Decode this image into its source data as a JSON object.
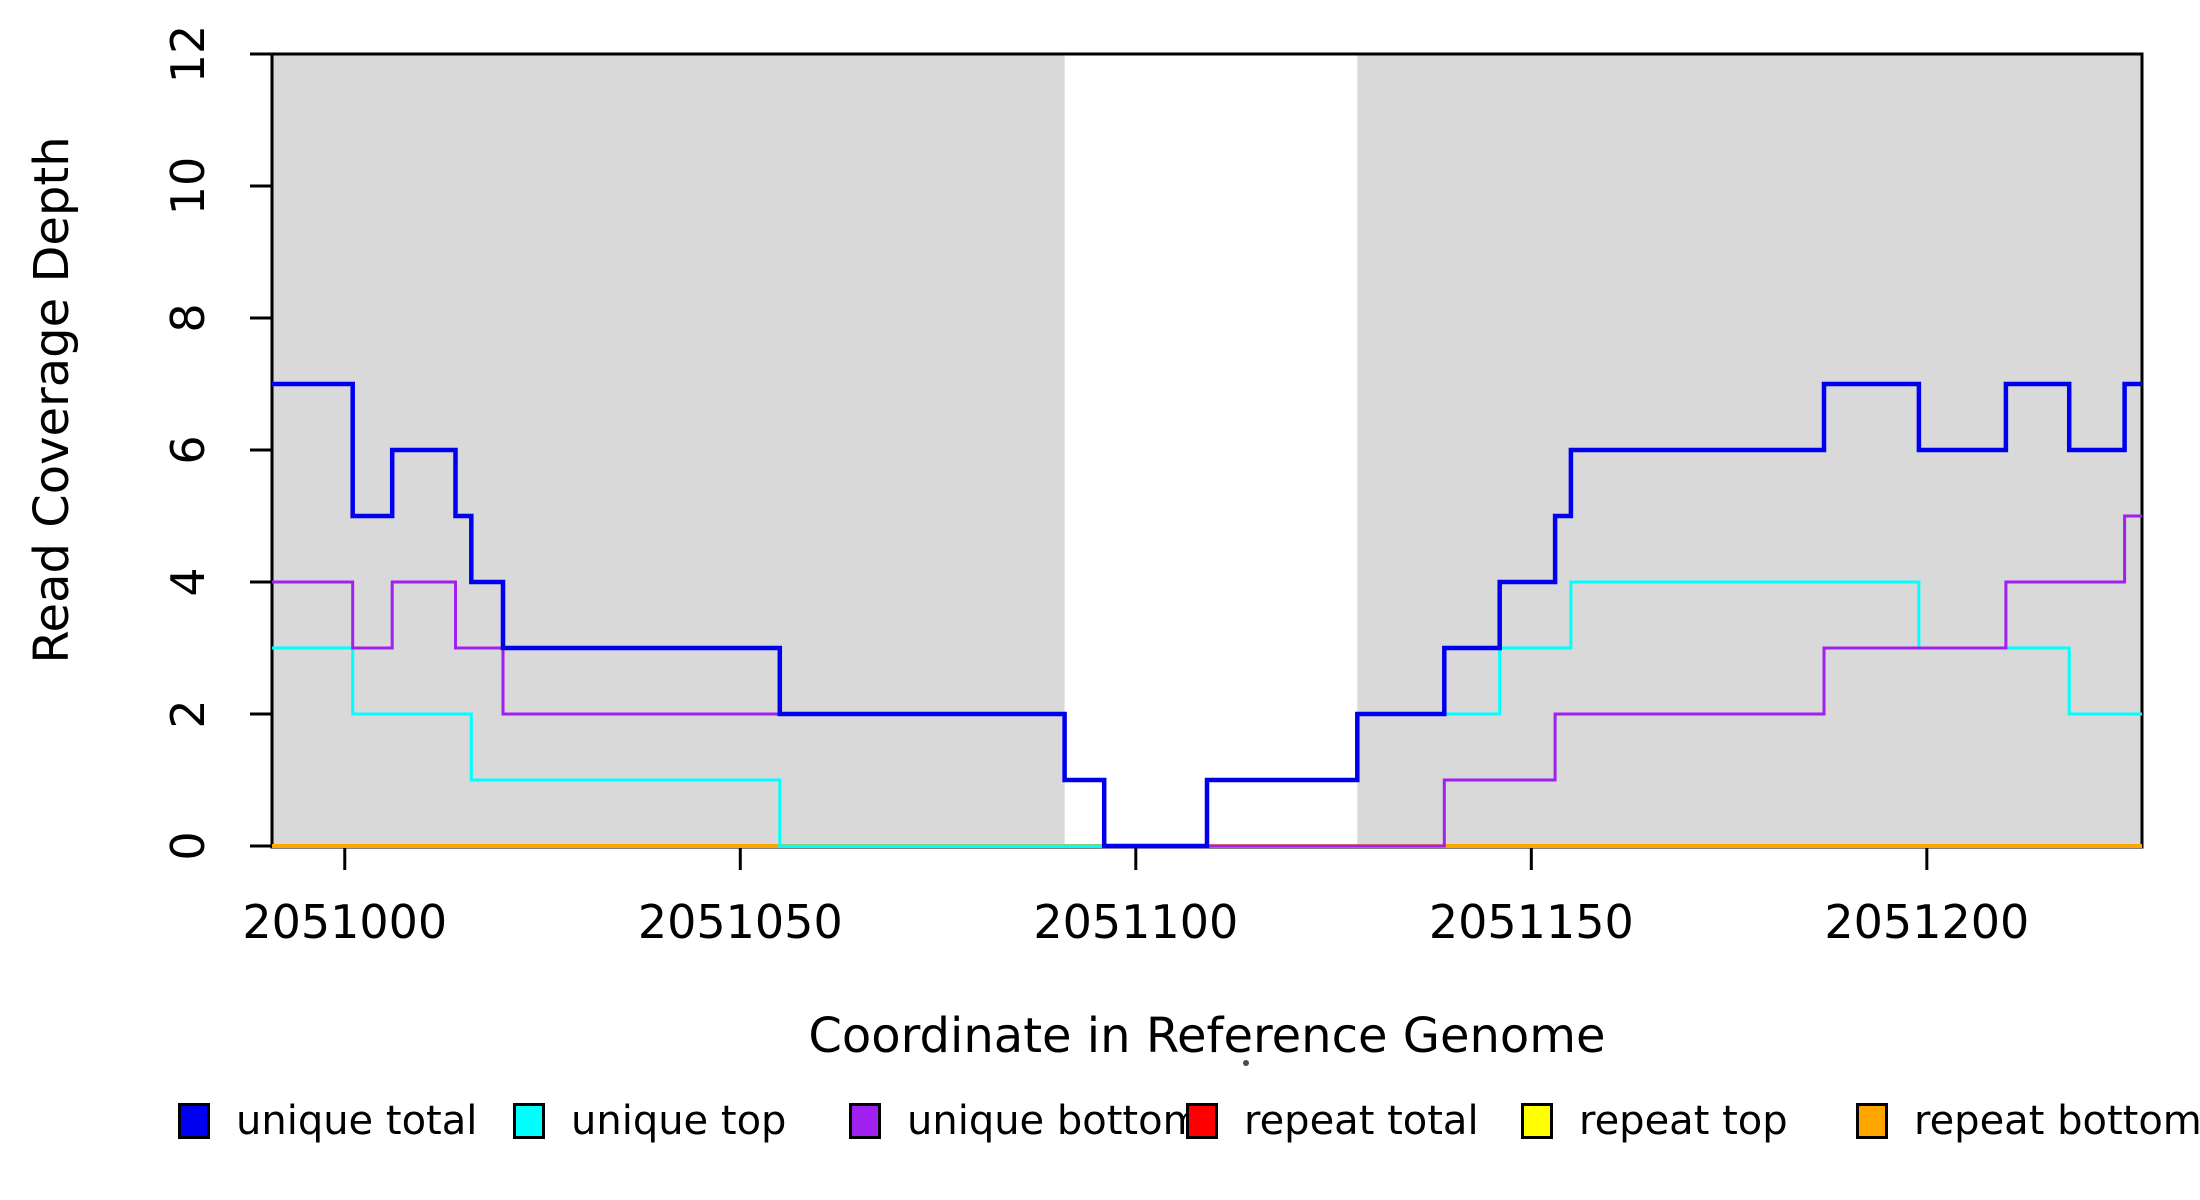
{
  "figure": {
    "background": "#FFFFFF",
    "axis_color": "#000000"
  },
  "chart_data": {
    "type": "line",
    "subtype": "step",
    "title": "",
    "xlabel": "Coordinate in Reference Genome",
    "ylabel": "Read Coverage Depth",
    "xlim": [
      2050990.8,
      2051227.2
    ],
    "ylim": [
      0,
      12
    ],
    "x_ticks": [
      2051000,
      2051050,
      2051100,
      2051150,
      2051200
    ],
    "y_ticks": [
      0,
      2,
      4,
      6,
      8,
      10,
      12
    ],
    "grid": false,
    "legend_position": "bottom",
    "shaded_regions": [
      {
        "name": "unique-region-left",
        "from": 2050990.8,
        "to": 2051091,
        "color": "#D9D9D9"
      },
      {
        "name": "unique-region-right",
        "from": 2051128,
        "to": 2051227.2,
        "color": "#D9D9D9"
      }
    ],
    "draw_order": [
      "repeat top",
      "repeat total",
      "repeat bottom",
      "unique top",
      "unique bottom",
      "unique total"
    ],
    "series": [
      {
        "name": "unique total",
        "color": "#0000EE",
        "line_width": 4.5,
        "steps": [
          [
            2050991,
            7
          ],
          [
            2051001,
            5
          ],
          [
            2051006,
            6
          ],
          [
            2051014,
            5
          ],
          [
            2051016,
            4
          ],
          [
            2051020,
            3
          ],
          [
            2051055,
            2
          ],
          [
            2051091,
            1
          ],
          [
            2051096,
            0
          ],
          [
            2051109,
            1
          ],
          [
            2051128,
            2
          ],
          [
            2051139,
            3
          ],
          [
            2051146,
            4
          ],
          [
            2051153,
            5
          ],
          [
            2051155,
            6
          ],
          [
            2051187,
            7
          ],
          [
            2051199,
            6
          ],
          [
            2051210,
            7
          ],
          [
            2051218,
            6
          ],
          [
            2051225,
            7
          ]
        ]
      },
      {
        "name": "unique top",
        "color": "#00FFFF",
        "line_width": 3,
        "steps": [
          [
            2050991,
            3
          ],
          [
            2051001,
            2
          ],
          [
            2051016,
            1
          ],
          [
            2051055,
            0
          ],
          [
            2051109,
            1
          ],
          [
            2051128,
            2
          ],
          [
            2051146,
            3
          ],
          [
            2051155,
            4
          ],
          [
            2051199,
            3
          ],
          [
            2051218,
            2
          ]
        ]
      },
      {
        "name": "unique bottom",
        "color": "#A020F0",
        "line_width": 3,
        "steps": [
          [
            2050991,
            4
          ],
          [
            2051001,
            3
          ],
          [
            2051006,
            4
          ],
          [
            2051014,
            3
          ],
          [
            2051020,
            2
          ],
          [
            2051091,
            1
          ],
          [
            2051096,
            0
          ],
          [
            2051139,
            1
          ],
          [
            2051153,
            2
          ],
          [
            2051187,
            3
          ],
          [
            2051210,
            4
          ],
          [
            2051225,
            5
          ]
        ]
      },
      {
        "name": "repeat total",
        "color": "#FF0000",
        "line_width": 3,
        "steps": [
          [
            2050991,
            0
          ]
        ]
      },
      {
        "name": "repeat top",
        "color": "#FFFF00",
        "line_width": 3,
        "steps": [
          [
            2050991,
            0
          ]
        ]
      },
      {
        "name": "repeat bottom",
        "color": "#FFA500",
        "line_width": 4,
        "steps": [
          [
            2050991,
            0
          ]
        ]
      }
    ]
  },
  "legend": {
    "items": [
      {
        "label": "unique total",
        "color": "#0000EE"
      },
      {
        "label": "unique top",
        "color": "#00FFFF"
      },
      {
        "label": "unique bottom",
        "color": "#A020F0"
      },
      {
        "label": "repeat total",
        "color": "#FF0000"
      },
      {
        "label": "repeat top",
        "color": "#FFFF00"
      },
      {
        "label": "repeat bottom",
        "color": "#FFA500"
      }
    ]
  }
}
